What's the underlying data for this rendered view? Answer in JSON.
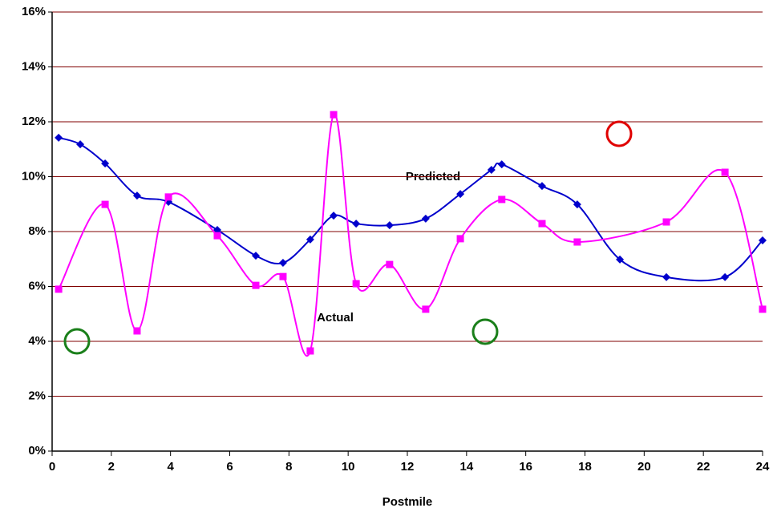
{
  "chart_data": {
    "type": "line",
    "x_label": "Postmile",
    "xlim": [
      0,
      24
    ],
    "xticks": [
      0,
      2,
      4,
      6,
      8,
      10,
      12,
      14,
      16,
      18,
      20,
      22,
      24
    ],
    "ylim": [
      0,
      16
    ],
    "yticks": [
      {
        "value": 0,
        "label": "0%"
      },
      {
        "value": 2,
        "label": "2%"
      },
      {
        "value": 4,
        "label": "4%"
      },
      {
        "value": 6,
        "label": "6%"
      },
      {
        "value": 8,
        "label": "8%"
      },
      {
        "value": 10,
        "label": "10%"
      },
      {
        "value": 12,
        "label": "12%"
      },
      {
        "value": 14,
        "label": "14%"
      },
      {
        "value": 16,
        "label": "16%"
      }
    ],
    "grid": true,
    "grid_color": "#800000",
    "smooth": true,
    "series": [
      {
        "name": "Predicted",
        "color": "#0000cc",
        "marker": "diamond",
        "x": [
          0.22,
          0.95,
          1.79,
          2.87,
          3.93,
          5.58,
          6.88,
          7.8,
          8.72,
          9.51,
          10.27,
          11.4,
          12.62,
          13.79,
          14.84,
          15.19,
          16.55,
          17.74,
          19.18,
          20.75,
          22.73,
          24.0
        ],
        "values": [
          11.42,
          11.18,
          10.48,
          9.31,
          9.08,
          8.06,
          7.12,
          6.86,
          7.71,
          8.58,
          8.29,
          8.23,
          8.47,
          9.37,
          10.25,
          10.45,
          9.66,
          8.99,
          6.98,
          6.34,
          6.34,
          7.68
        ]
      },
      {
        "name": "Actual",
        "color": "#ff00ff",
        "marker": "square",
        "x": [
          0.22,
          1.79,
          2.87,
          3.93,
          5.58,
          6.88,
          7.8,
          8.72,
          9.51,
          10.27,
          11.4,
          12.62,
          13.79,
          15.19,
          16.55,
          17.74,
          20.75,
          22.73,
          24.0
        ],
        "values": [
          5.9,
          8.99,
          4.38,
          9.26,
          7.85,
          6.04,
          6.36,
          3.65,
          12.26,
          6.1,
          6.8,
          5.17,
          7.74,
          9.17,
          8.29,
          7.62,
          8.35,
          10.16,
          5.17
        ]
      }
    ]
  }
}
